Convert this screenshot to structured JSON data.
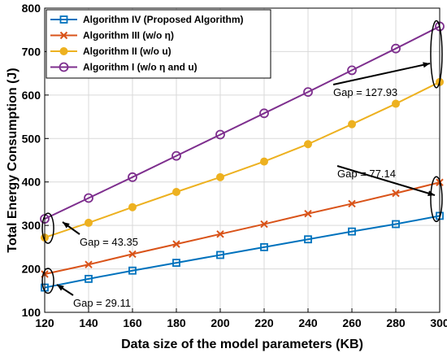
{
  "chart_data": {
    "type": "line",
    "xlabel": "Data size of the model parameters (KB)",
    "ylabel": "Total Energy Consumption (J)",
    "xlim": [
      120,
      300
    ],
    "ylim": [
      100,
      800
    ],
    "xticks": [
      120,
      140,
      160,
      180,
      200,
      220,
      240,
      260,
      280,
      300
    ],
    "yticks": [
      100,
      200,
      300,
      400,
      500,
      600,
      700,
      800
    ],
    "grid": true,
    "legend_position": "top-left",
    "x": [
      120,
      140,
      160,
      180,
      200,
      220,
      240,
      260,
      280,
      300
    ],
    "series": [
      {
        "name": "Algorithm IV (Proposed Algorithm)",
        "color": "#0072BD",
        "marker": "square",
        "values": [
          157,
          177,
          196,
          214,
          232,
          250,
          268,
          286,
          303,
          322
        ]
      },
      {
        "name": "Algorithm III (w/o η)",
        "color": "#D95319",
        "marker": "x",
        "values": [
          188,
          210,
          234,
          257,
          280,
          303,
          327,
          350,
          374,
          399
        ]
      },
      {
        "name": "Algorithm II (w/o u)",
        "color": "#EDB120",
        "marker": "asterisk",
        "values": [
          272,
          306,
          342,
          377,
          411,
          447,
          487,
          533,
          580,
          630
        ]
      },
      {
        "name": "Algorithm I (w/o η and u)",
        "color": "#7E2F8E",
        "marker": "circle",
        "values": [
          315,
          363,
          411,
          460,
          509,
          558,
          607,
          657,
          707,
          758
        ]
      }
    ],
    "annotations": [
      {
        "text": "Gap = 29.11"
      },
      {
        "text": "Gap = 43.35"
      },
      {
        "text": "Gap = 77.14"
      },
      {
        "text": "Gap = 127.93"
      }
    ]
  }
}
